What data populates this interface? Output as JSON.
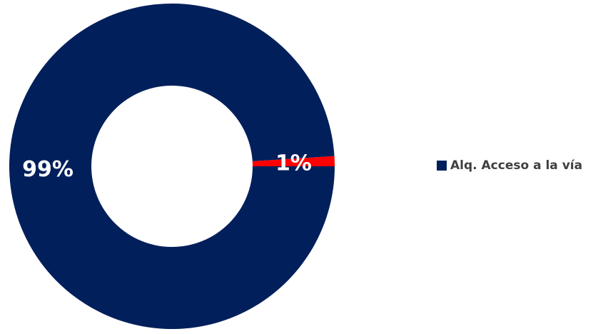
{
  "chart_data": {
    "type": "pie",
    "variant": "donut",
    "title": "",
    "series": [
      {
        "name": "Alq. Acceso a la vía",
        "color": "#001F5B",
        "slices": [
          {
            "value": 99,
            "label": "99%",
            "color": "#001F5B"
          },
          {
            "value": 1,
            "label": "1%",
            "color": "#FF0000"
          }
        ]
      }
    ],
    "legend_position": "right"
  },
  "legend": {
    "label": "Alq. Acceso a la vía",
    "color": "#001F5B"
  }
}
